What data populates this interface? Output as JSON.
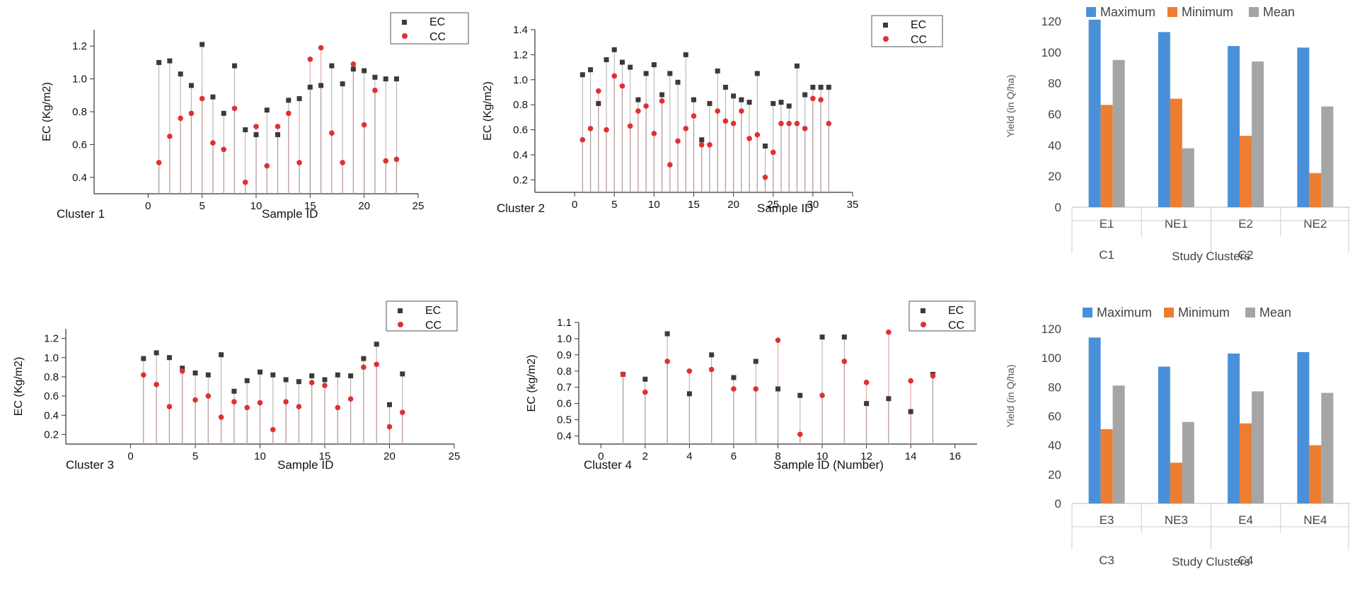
{
  "colors": {
    "ec": "#3a3a3a",
    "cc": "#e03030",
    "cc_line": "#f0b0b0",
    "ec_line": "#999999",
    "maximum": "#4a90d9",
    "minimum": "#ed7d31",
    "mean": "#a5a5a5"
  },
  "chart_data": [
    {
      "type": "scatter",
      "title": "Cluster 1",
      "xlabel": "Sample ID",
      "ylabel": "EC (Kg/m2)",
      "xlim": [
        -5,
        25
      ],
      "ylim": [
        0.3,
        1.3
      ],
      "xticks": [
        0,
        5,
        10,
        15,
        20,
        25
      ],
      "yticks": [
        0.4,
        0.6,
        0.8,
        1.0,
        1.2
      ],
      "ytick_labels": [
        "0.4",
        "0.6",
        "0.8",
        "1.0",
        "1.2"
      ],
      "legend": [
        "EC",
        "CC"
      ],
      "x": [
        1,
        2,
        3,
        4,
        5,
        6,
        7,
        8,
        9,
        10,
        11,
        12,
        13,
        14,
        15,
        16,
        17,
        18,
        19,
        20,
        21,
        22,
        23
      ],
      "series": [
        {
          "name": "EC",
          "values": [
            1.1,
            1.11,
            1.03,
            0.96,
            1.21,
            0.89,
            0.79,
            1.08,
            0.69,
            0.66,
            0.81,
            0.66,
            0.87,
            0.88,
            0.95,
            0.96,
            1.08,
            0.97,
            1.06,
            1.05,
            1.01,
            1.0,
            1.0
          ]
        },
        {
          "name": "CC",
          "values": [
            0.49,
            0.65,
            0.76,
            0.79,
            0.88,
            0.61,
            0.57,
            0.82,
            0.37,
            0.71,
            0.47,
            0.71,
            0.79,
            0.49,
            1.12,
            1.19,
            0.67,
            0.49,
            1.09,
            0.72,
            0.93,
            0.5,
            0.51
          ]
        }
      ]
    },
    {
      "type": "scatter",
      "title": "Cluster 2",
      "xlabel": "Sample ID",
      "ylabel": "EC (Kg/m2)",
      "xlim": [
        -5,
        35
      ],
      "ylim": [
        0.1,
        1.4
      ],
      "xticks": [
        0,
        5,
        10,
        15,
        20,
        25,
        30,
        35
      ],
      "yticks": [
        0.2,
        0.4,
        0.6,
        0.8,
        1.0,
        1.2,
        1.4
      ],
      "ytick_labels": [
        "0.2",
        "0.4",
        "0.6",
        "0.8",
        "1.0",
        "1.2",
        "1.4"
      ],
      "legend": [
        "EC",
        "CC"
      ],
      "x": [
        1,
        2,
        3,
        4,
        5,
        6,
        7,
        8,
        9,
        10,
        11,
        12,
        13,
        14,
        15,
        16,
        17,
        18,
        19,
        20,
        21,
        22,
        23,
        24,
        25,
        26,
        27,
        28,
        29,
        30,
        31,
        32
      ],
      "series": [
        {
          "name": "EC",
          "values": [
            1.04,
            1.08,
            0.81,
            1.16,
            1.24,
            1.14,
            1.1,
            0.84,
            1.05,
            1.12,
            0.88,
            1.05,
            0.98,
            1.2,
            0.84,
            0.52,
            0.81,
            1.07,
            0.94,
            0.87,
            0.84,
            0.82,
            1.05,
            0.47,
            0.81,
            0.82,
            0.79,
            1.11,
            0.88,
            0.94,
            0.94,
            0.94
          ]
        },
        {
          "name": "CC",
          "values": [
            0.52,
            0.61,
            0.91,
            0.6,
            1.03,
            0.95,
            0.63,
            0.75,
            0.79,
            0.57,
            0.83,
            0.32,
            0.51,
            0.61,
            0.71,
            0.48,
            0.48,
            0.75,
            0.67,
            0.65,
            0.75,
            0.53,
            0.56,
            0.22,
            0.42,
            0.65,
            0.65,
            0.65,
            0.61,
            0.85,
            0.84,
            0.65
          ]
        }
      ]
    },
    {
      "type": "bar",
      "title": "",
      "xlabel": "Study Clusters",
      "ylabel": "Yield (in Q/ha)",
      "ylim": [
        0,
        120
      ],
      "yticks": [
        0,
        20,
        40,
        60,
        80,
        100,
        120
      ],
      "categories": [
        "E1",
        "NE1",
        "E2",
        "NE2"
      ],
      "groups": [
        "C1",
        "C2"
      ],
      "series": [
        {
          "name": "Maximum",
          "values": [
            121,
            113,
            104,
            103
          ]
        },
        {
          "name": "Minimum",
          "values": [
            66,
            70,
            46,
            22
          ]
        },
        {
          "name": "Mean",
          "values": [
            95,
            38,
            94,
            65
          ]
        }
      ]
    },
    {
      "type": "scatter",
      "title": "Cluster 3",
      "xlabel": "Sample ID",
      "ylabel": "EC (Kg/m2)",
      "xlim": [
        -5,
        25
      ],
      "ylim": [
        0.1,
        1.3
      ],
      "xticks": [
        0,
        5,
        10,
        15,
        20,
        25
      ],
      "yticks": [
        0.2,
        0.4,
        0.6,
        0.8,
        1.0,
        1.2
      ],
      "ytick_labels": [
        "0.2",
        "0.4",
        "0.6",
        "0.8",
        "1.0",
        "1.2"
      ],
      "legend": [
        "EC",
        "CC"
      ],
      "x": [
        1,
        2,
        3,
        4,
        5,
        6,
        7,
        8,
        9,
        10,
        11,
        12,
        13,
        14,
        15,
        16,
        17,
        18,
        19,
        20,
        21
      ],
      "series": [
        {
          "name": "EC",
          "values": [
            0.99,
            1.05,
            1.0,
            0.89,
            0.84,
            0.82,
            1.03,
            0.65,
            0.76,
            0.85,
            0.82,
            0.77,
            0.75,
            0.81,
            0.77,
            0.82,
            0.81,
            0.99,
            1.14,
            0.51,
            0.83
          ]
        },
        {
          "name": "CC",
          "values": [
            0.82,
            0.72,
            0.49,
            0.86,
            0.56,
            0.6,
            0.38,
            0.54,
            0.48,
            0.53,
            0.25,
            0.54,
            0.49,
            0.74,
            0.71,
            0.48,
            0.57,
            0.9,
            0.93,
            0.28,
            0.43
          ]
        }
      ]
    },
    {
      "type": "scatter",
      "title": "Cluster 4",
      "xlabel": "Sample ID (Number)",
      "ylabel": "EC (kg/m2)",
      "xlim": [
        -1,
        17
      ],
      "ylim": [
        0.35,
        1.1
      ],
      "xticks": [
        0,
        2,
        4,
        6,
        8,
        10,
        12,
        14,
        16
      ],
      "yticks": [
        0.4,
        0.5,
        0.6,
        0.7,
        0.8,
        0.9,
        1.0,
        1.1
      ],
      "ytick_labels": [
        "0.4",
        "0.5",
        "0.6",
        "0.7",
        "0.8",
        "0.9",
        "1.0",
        "1.1"
      ],
      "legend": [
        "EC",
        "CC"
      ],
      "x": [
        1,
        2,
        3,
        4,
        5,
        6,
        7,
        8,
        9,
        10,
        11,
        12,
        13,
        14,
        15
      ],
      "series": [
        {
          "name": "EC",
          "values": [
            0.78,
            0.75,
            1.03,
            0.66,
            0.9,
            0.76,
            0.86,
            0.69,
            0.65,
            1.01,
            1.01,
            0.6,
            0.63,
            0.55,
            0.78
          ]
        },
        {
          "name": "CC",
          "values": [
            0.78,
            0.67,
            0.86,
            0.8,
            0.81,
            0.69,
            0.69,
            0.99,
            0.41,
            0.65,
            0.86,
            0.73,
            1.04,
            0.74,
            0.77
          ]
        }
      ]
    },
    {
      "type": "bar",
      "title": "",
      "xlabel": "Study Clusters",
      "ylabel": "Yield (in Q/ha)",
      "ylim": [
        0,
        120
      ],
      "yticks": [
        0,
        20,
        40,
        60,
        80,
        100,
        120
      ],
      "categories": [
        "E3",
        "NE3",
        "E4",
        "NE4"
      ],
      "groups": [
        "C3",
        "C4"
      ],
      "series": [
        {
          "name": "Maximum",
          "values": [
            114,
            94,
            103,
            104
          ]
        },
        {
          "name": "Minimum",
          "values": [
            51,
            28,
            55,
            40
          ]
        },
        {
          "name": "Mean",
          "values": [
            81,
            56,
            77,
            76
          ]
        }
      ]
    }
  ]
}
